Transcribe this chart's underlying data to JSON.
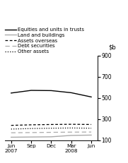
{
  "x_positions": [
    0,
    1,
    2,
    3,
    4
  ],
  "equities": [
    545,
    570,
    568,
    548,
    508
  ],
  "land_buildings": [
    128,
    130,
    132,
    145,
    148
  ],
  "assets_overseas": [
    240,
    245,
    248,
    250,
    248
  ],
  "debt_securities": [
    170,
    172,
    174,
    176,
    177
  ],
  "other_assets": [
    205,
    210,
    213,
    215,
    213
  ],
  "ylim": [
    100,
    900
  ],
  "yticks": [
    100,
    300,
    500,
    700,
    900
  ],
  "legend_entries": [
    "Equities and units in trusts",
    "Land and buildings",
    "Assets overseas",
    "Debt securities",
    "Other assets"
  ],
  "equities_color": "#000000",
  "land_buildings_color": "#aaaaaa",
  "assets_overseas_color": "#000000",
  "debt_securities_color": "#aaaaaa",
  "other_assets_color": "#000000",
  "bg_color": "#ffffff",
  "x_tick_labels": [
    "Jun\n2007",
    "Sep",
    "Dec",
    "Mar\n2008",
    "Jun"
  ]
}
